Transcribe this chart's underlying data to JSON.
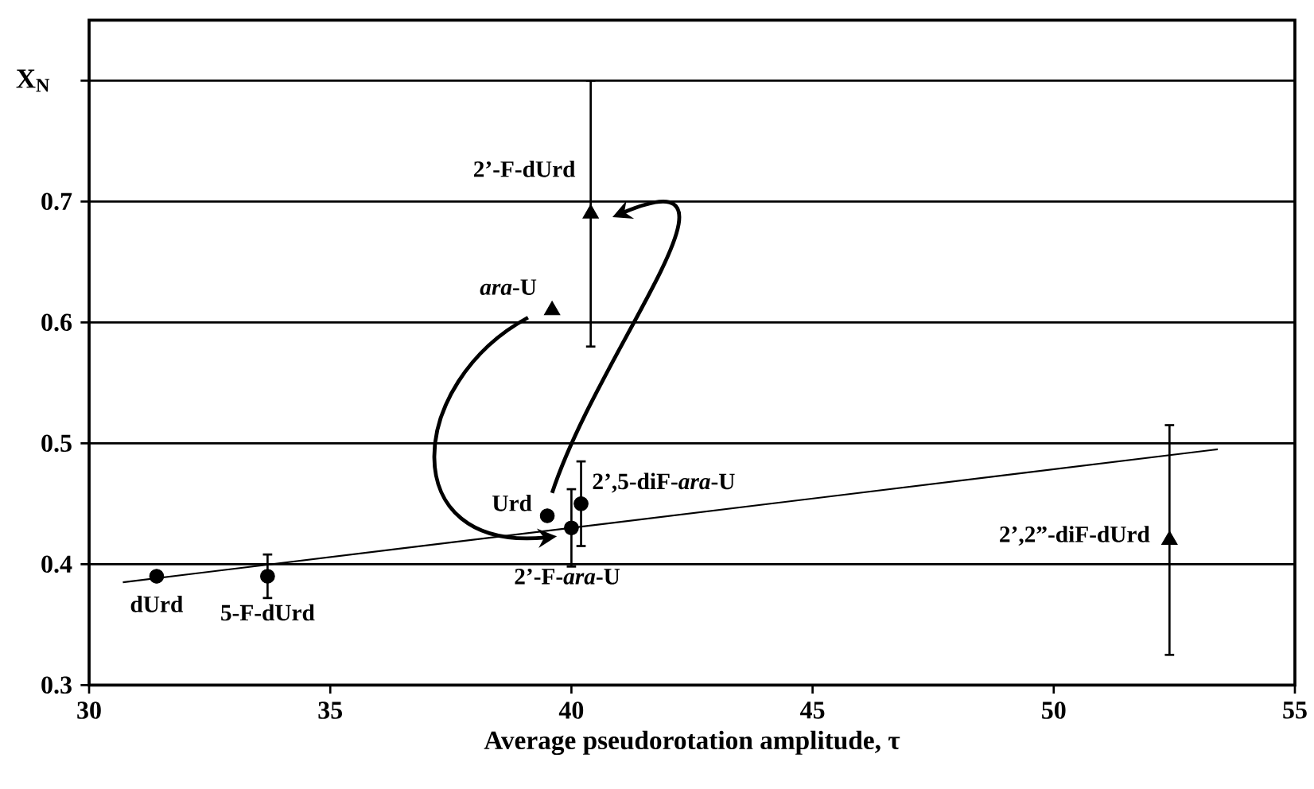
{
  "chart_data": {
    "type": "scatter",
    "xlabel": "Average pseudorotation amplitude, τ",
    "ylabel": "X$_{N}$",
    "xlim": [
      30,
      55
    ],
    "xticks": [
      30,
      35,
      40,
      45,
      50,
      55
    ],
    "ylim": [
      0.3,
      0.85
    ],
    "yticks": [
      0.3,
      0.4,
      0.5,
      0.6,
      0.7,
      {
        "value": 0.8,
        "label": null
      }
    ],
    "grid": "y",
    "series": [
      {
        "marker": "circle",
        "color": "#000000",
        "x": [
          31.4,
          33.7,
          39.5,
          40.0,
          40.2
        ],
        "values": [
          0.39,
          0.39,
          0.44,
          0.43,
          0.45
        ],
        "errors": [
          null,
          0.018,
          null,
          0.032,
          0.035
        ]
      },
      {
        "marker": "triangle",
        "color": "#000000",
        "x": [
          39.6,
          40.4,
          52.4
        ],
        "values": [
          0.61,
          0.69,
          0.42
        ],
        "errors": [
          null,
          0.11,
          0.095
        ]
      },
      {
        "type": "line",
        "marker": "none",
        "color": "#000000",
        "x": [
          30.7,
          53.4
        ],
        "values": [
          0.385,
          0.495
        ]
      }
    ],
    "annotations": [
      {
        "text": "dUrd",
        "x": 31.4,
        "y": 0.39
      },
      {
        "text": "5-F-dUrd",
        "x": 33.7,
        "y": 0.39
      },
      {
        "text": "Urd",
        "x": 39.5,
        "y": 0.44
      },
      {
        "text": "2’-F-*ara*-U",
        "x": 40.0,
        "y": 0.43
      },
      {
        "text": "2’,5-diF-*ara*-U",
        "x": 40.2,
        "y": 0.45
      },
      {
        "text": "*ara*-U",
        "x": 39.6,
        "y": 0.61
      },
      {
        "text": "2’-F-dUrd",
        "x": 40.4,
        "y": 0.69
      },
      {
        "text": "2’,2”-diF-dUrd",
        "x": 52.4,
        "y": 0.42
      }
    ]
  }
}
